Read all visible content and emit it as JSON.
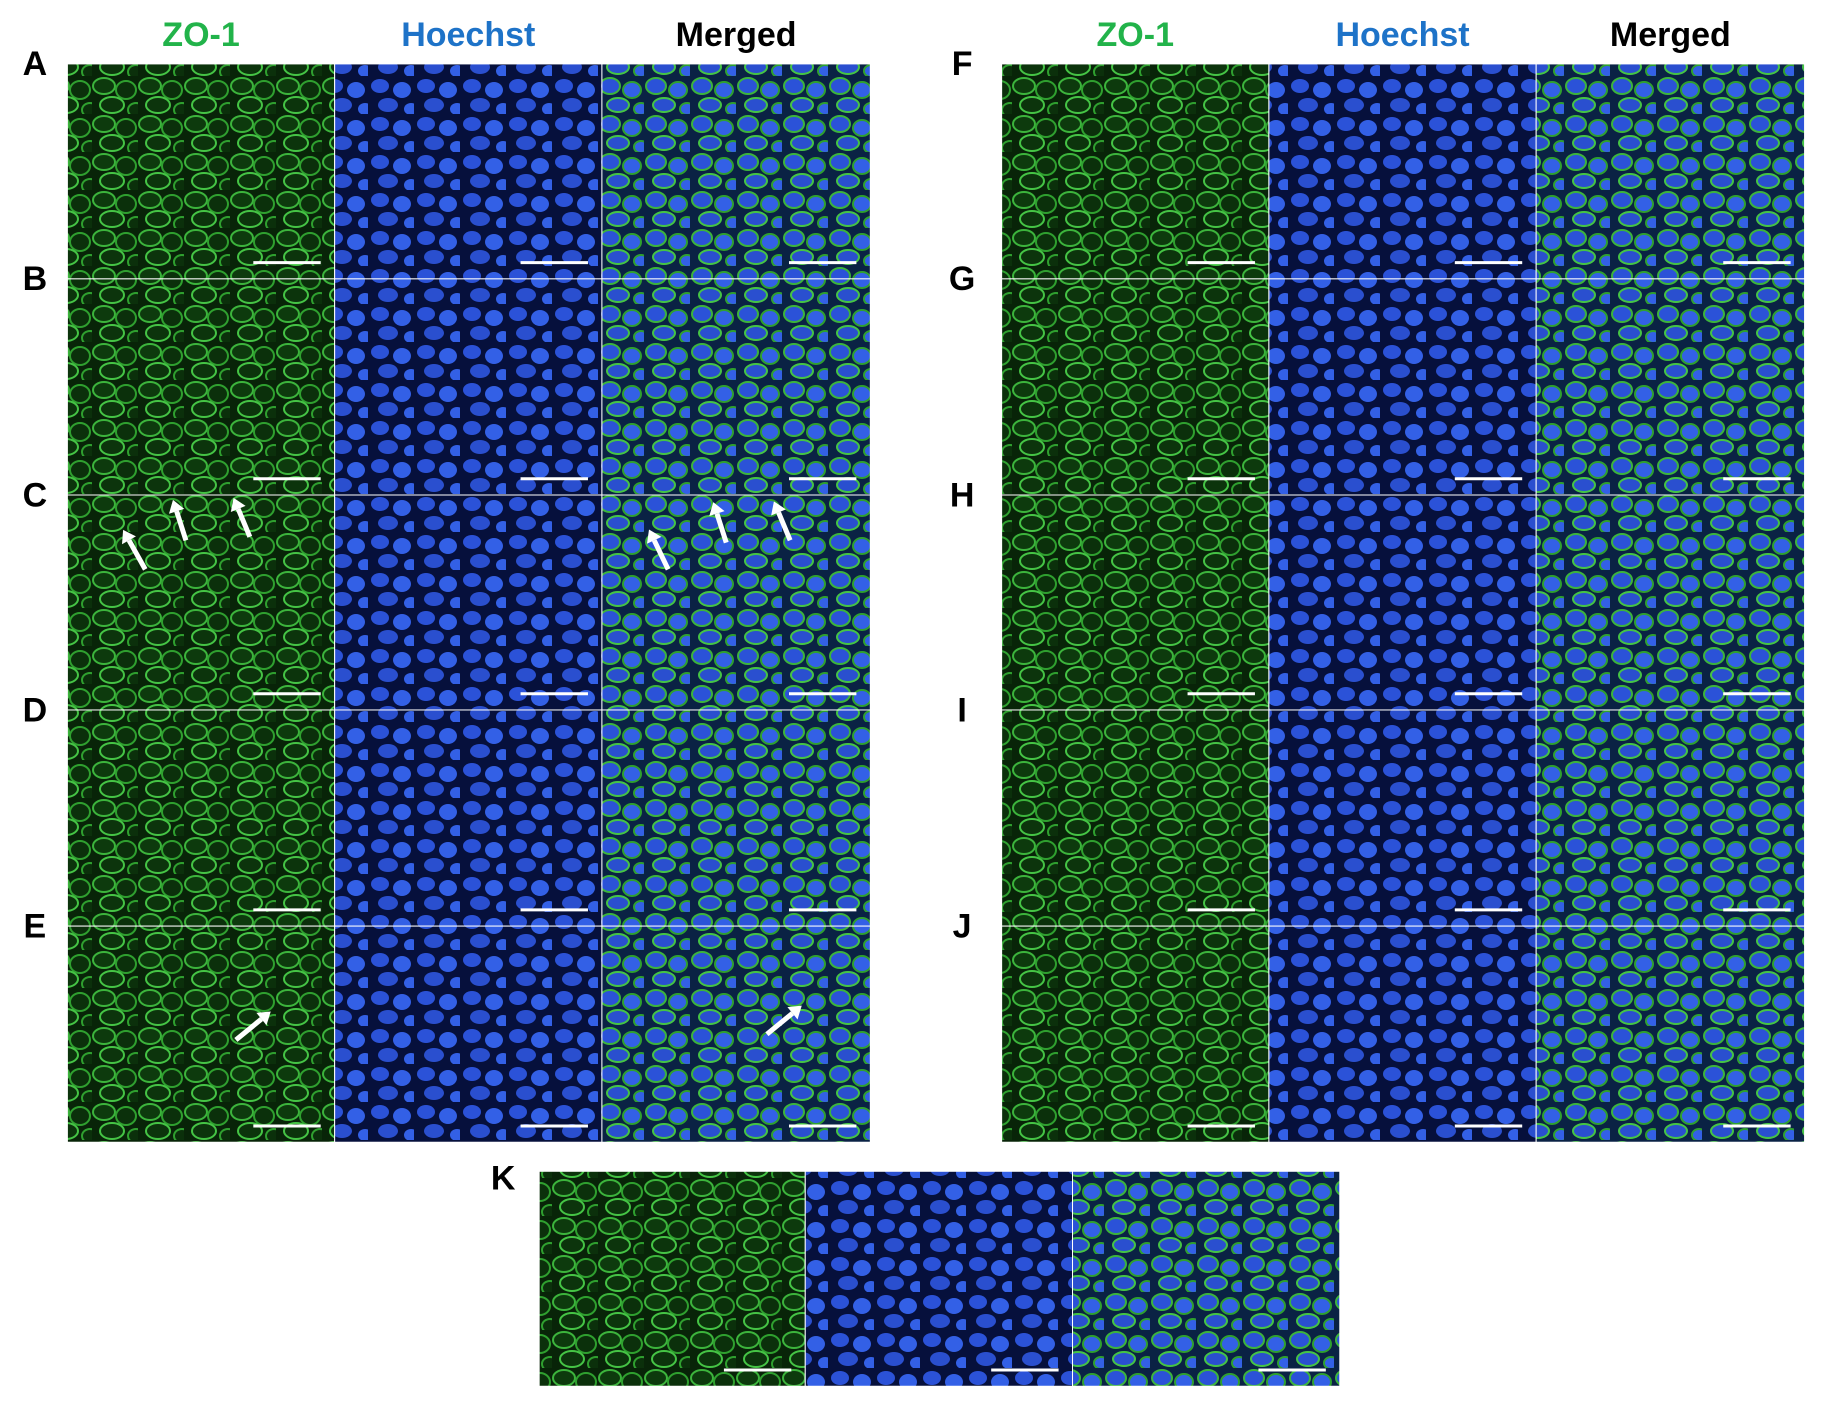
{
  "left_block": {
    "headers": [
      "ZO-1",
      "Hoechst",
      "Merged"
    ],
    "rows": [
      "A",
      "B",
      "C",
      "D",
      "E"
    ]
  },
  "right_block": {
    "headers": [
      "ZO-1",
      "Hoechst",
      "Merged"
    ],
    "rows": [
      "F",
      "G",
      "H",
      "I",
      "J"
    ]
  },
  "bottom_row": {
    "label": "K"
  }
}
